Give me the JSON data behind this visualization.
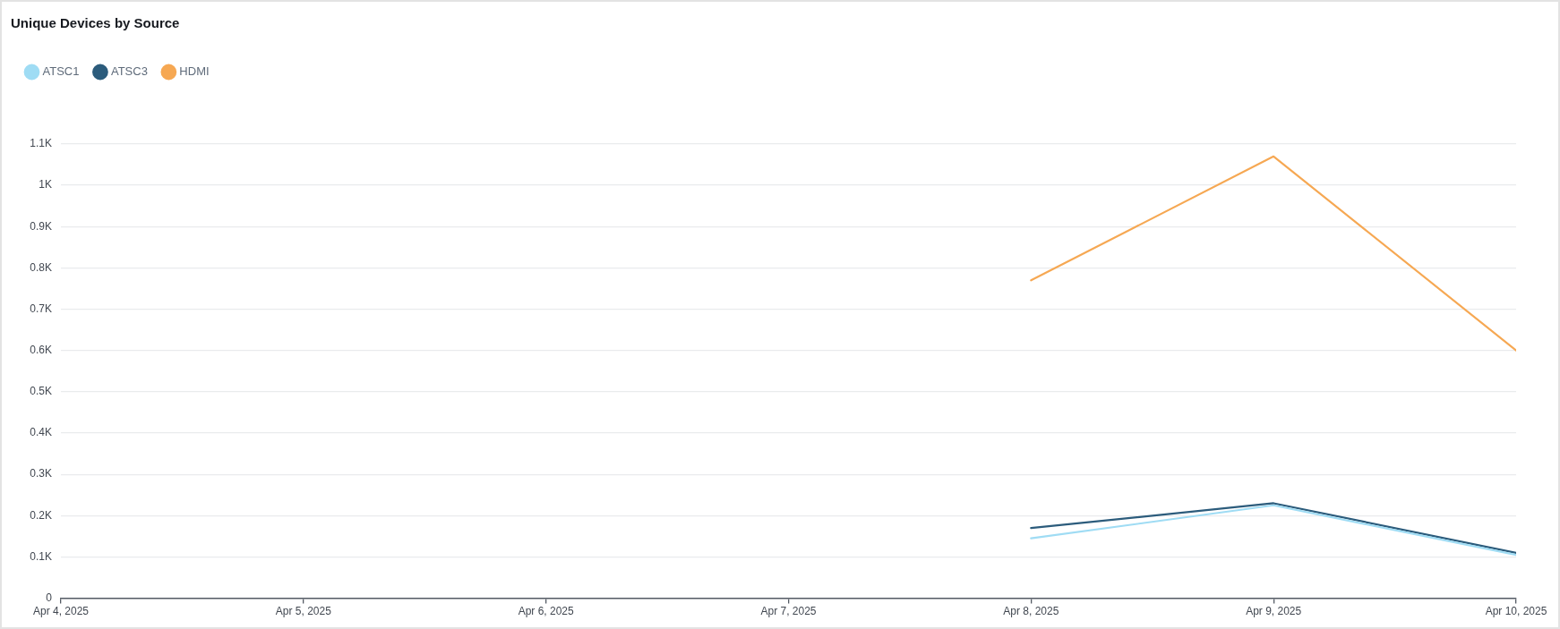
{
  "chart_data": {
    "type": "line",
    "title": "Unique Devices by Source",
    "x": [
      "2025-04-08",
      "2025-04-09",
      "2025-04-10"
    ],
    "series": [
      {
        "name": "ATSC1",
        "color": "#9fdcf4",
        "values": [
          145,
          225,
          105
        ]
      },
      {
        "name": "ATSC3",
        "color": "#2c5c7c",
        "values": [
          170,
          230,
          110
        ]
      },
      {
        "name": "HDMI",
        "color": "#f6a853",
        "values": [
          770,
          1070,
          600
        ]
      }
    ],
    "xlim": [
      "2025-04-04",
      "2025-04-10"
    ],
    "xticks": [
      {
        "value": "2025-04-04",
        "label": "Apr 4, 2025"
      },
      {
        "value": "2025-04-05",
        "label": "Apr 5, 2025"
      },
      {
        "value": "2025-04-06",
        "label": "Apr 6, 2025"
      },
      {
        "value": "2025-04-07",
        "label": "Apr 7, 2025"
      },
      {
        "value": "2025-04-08",
        "label": "Apr 8, 2025"
      },
      {
        "value": "2025-04-09",
        "label": "Apr 9, 2025"
      },
      {
        "value": "2025-04-10",
        "label": "Apr 10, 2025"
      }
    ],
    "ylim": [
      0,
      1100
    ],
    "yticks": [
      0,
      {
        "value": 100,
        "label": "0.1K"
      },
      {
        "value": 200,
        "label": "0.2K"
      },
      {
        "value": 300,
        "label": "0.3K"
      },
      {
        "value": 400,
        "label": "0.4K"
      },
      {
        "value": 500,
        "label": "0.5K"
      },
      {
        "value": 600,
        "label": "0.6K"
      },
      {
        "value": 700,
        "label": "0.7K"
      },
      {
        "value": 800,
        "label": "0.8K"
      },
      {
        "value": 900,
        "label": "0.9K"
      },
      {
        "value": 1000,
        "label": "1K"
      },
      {
        "value": 1100,
        "label": "1.1K"
      }
    ],
    "grid": "y",
    "legend": "top left",
    "marker": "none",
    "line_style": "solid"
  }
}
